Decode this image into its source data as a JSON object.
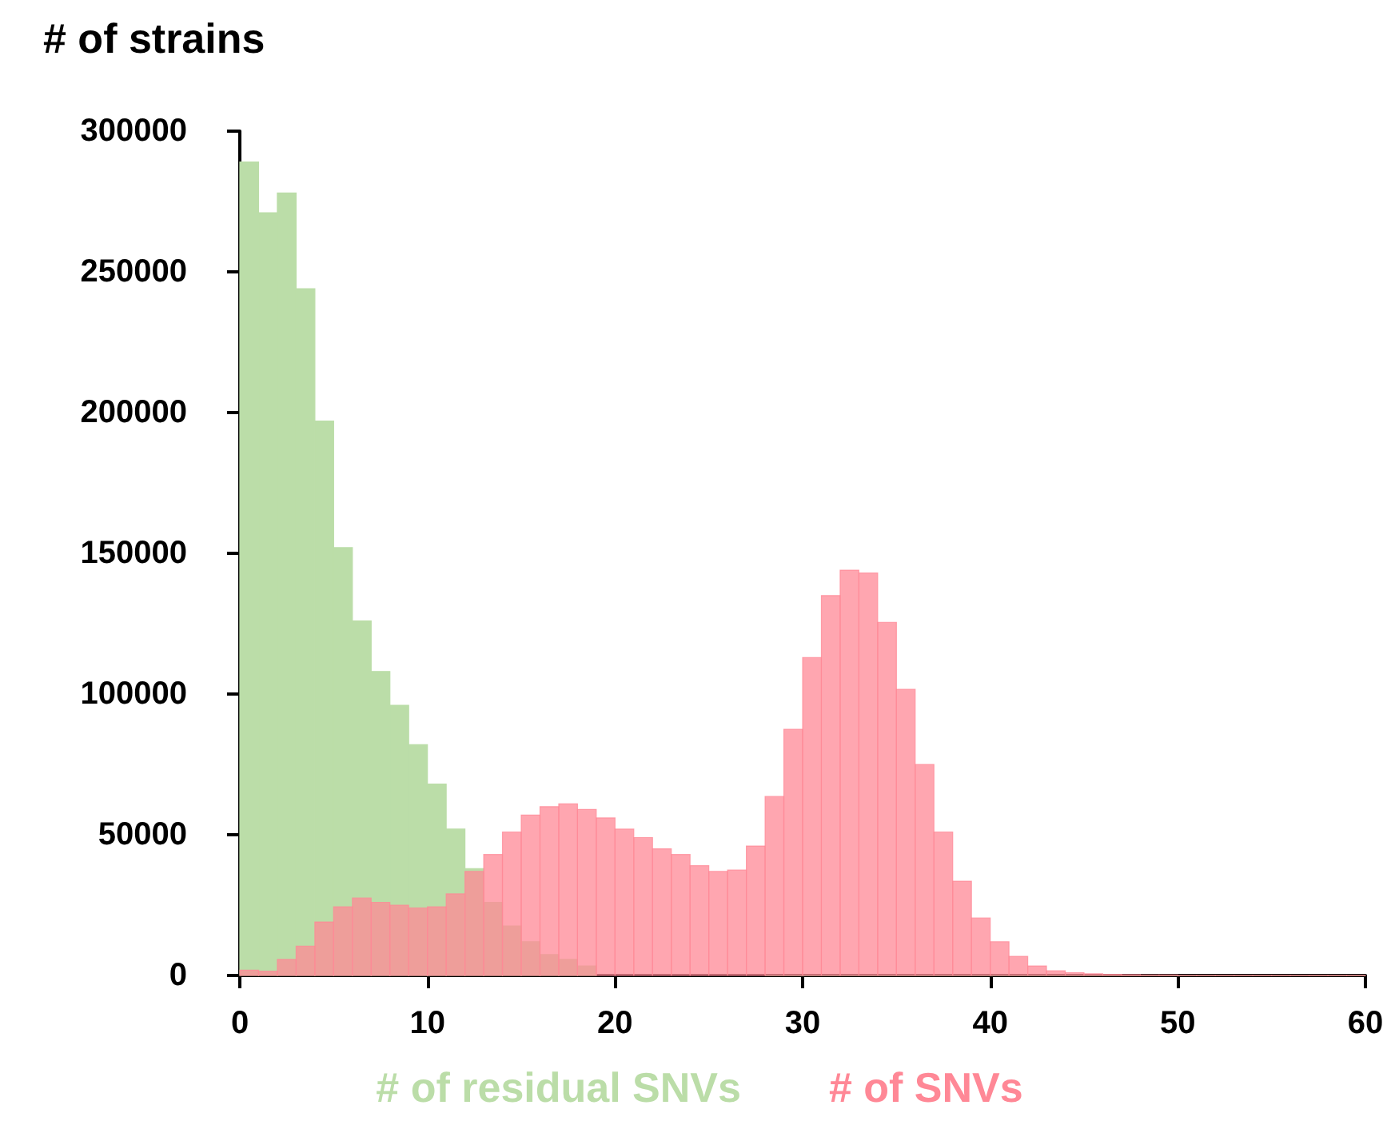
{
  "chart_data": {
    "type": "histogram",
    "ylabel": "# of strains",
    "bins": [
      0,
      1,
      2,
      3,
      4,
      5,
      6,
      7,
      8,
      9,
      10,
      11,
      12,
      13,
      14,
      15,
      16,
      17,
      18,
      19,
      20,
      21,
      22,
      23,
      24,
      25,
      26,
      27,
      28,
      29,
      30,
      31,
      32,
      33,
      34,
      35,
      36,
      37,
      38,
      39,
      40,
      41,
      42,
      43,
      44,
      45,
      46,
      47,
      48,
      49,
      50,
      51,
      52,
      53,
      54,
      55,
      56,
      57,
      58,
      59,
      60
    ],
    "series": [
      {
        "name": "# of residual SNVs",
        "color": "#bbdda8",
        "values": [
          289000,
          271000,
          278000,
          244000,
          197000,
          152000,
          126000,
          108000,
          96000,
          82000,
          68000,
          52000,
          38000,
          26000,
          17600,
          12000,
          7400,
          5700,
          3400,
          null,
          null,
          null,
          null,
          null,
          null,
          null,
          null,
          null,
          0,
          0,
          0,
          0,
          0,
          0,
          0,
          0,
          0,
          0,
          0,
          0,
          0,
          0,
          0,
          0,
          0,
          0,
          0,
          0,
          0,
          0,
          0,
          0,
          0,
          0,
          0,
          0,
          0,
          0,
          0,
          0
        ]
      },
      {
        "name": "# of SNVs",
        "color": "#ff8896",
        "values": [
          1900,
          1500,
          5700,
          10400,
          19000,
          24400,
          27500,
          26000,
          25000,
          24000,
          24400,
          29000,
          37000,
          43000,
          51000,
          57000,
          60000,
          61000,
          59000,
          56000,
          52000,
          49000,
          45000,
          43000,
          39000,
          37000,
          37500,
          46000,
          63600,
          87500,
          113000,
          135000,
          144000,
          143000,
          125500,
          101700,
          75000,
          51000,
          33500,
          20400,
          12000,
          6800,
          3400,
          1700,
          1000,
          600,
          400,
          300,
          200,
          200,
          100,
          100,
          100,
          100,
          100,
          100,
          100,
          100,
          100,
          100
        ]
      }
    ],
    "xlim": [
      0,
      60
    ],
    "xticks": [
      0,
      10,
      20,
      30,
      40,
      50,
      60
    ],
    "ylim": [
      0,
      300000
    ],
    "yticks": [
      0,
      50000,
      100000,
      150000,
      200000,
      250000,
      300000
    ],
    "grid": false,
    "legend": "bottom"
  }
}
